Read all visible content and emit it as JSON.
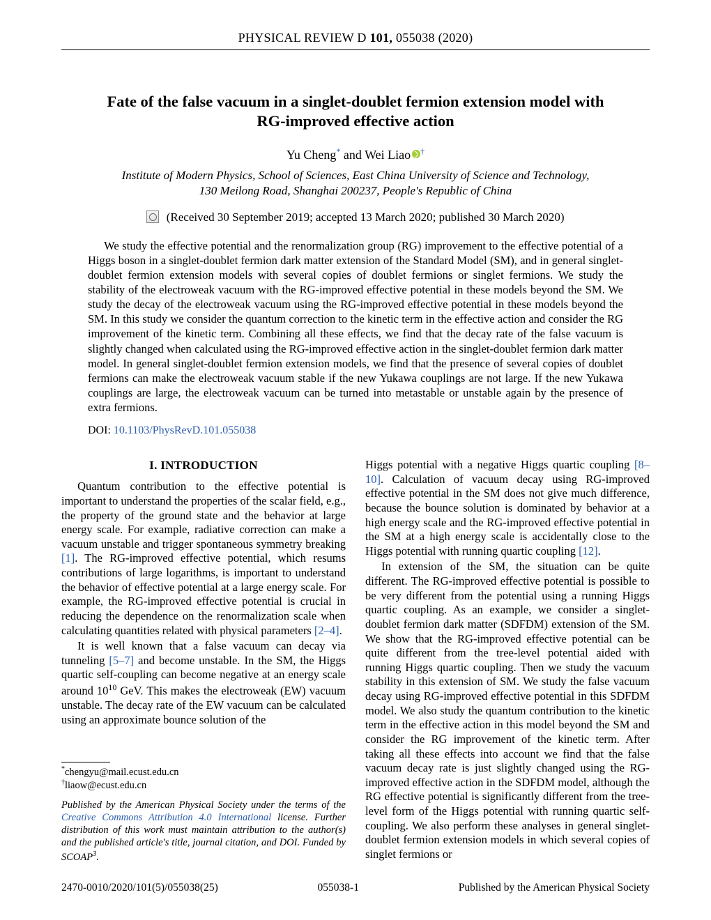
{
  "running_head": {
    "left": "PHYSICAL REVIEW D ",
    "volume": "101,",
    "right": " 055038 (2020)"
  },
  "title": "Fate of the false vacuum in a singlet-doublet fermion extension model with RG-improved effective action",
  "authors": {
    "a1_name": "Yu Cheng",
    "a1_sup": "*",
    "sep": " and ",
    "a2_name": "Wei Liao",
    "a2_sup": "†"
  },
  "affiliation_line1": "Institute of Modern Physics, School of Sciences, East China University of Science and Technology,",
  "affiliation_line2": "130 Meilong Road, Shanghai 200237, People's Republic of China",
  "dates": "(Received 30 September 2019; accepted 13 March 2020; published 30 March 2020)",
  "abstract": "We study the effective potential and the renormalization group (RG) improvement to the effective potential of a Higgs boson in a singlet-doublet fermion dark matter extension of the Standard Model (SM), and in general singlet-doublet fermion extension models with several copies of doublet fermions or singlet fermions. We study the stability of the electroweak vacuum with the RG-improved effective potential in these models beyond the SM. We study the decay of the electroweak vacuum using the RG-improved effective potential in these models beyond the SM. In this study we consider the quantum correction to the kinetic term in the effective action and consider the RG improvement of the kinetic term. Combining all these effects, we find that the decay rate of the false vacuum is slightly changed when calculated using the RG-improved effective action in the singlet-doublet fermion dark matter model. In general singlet-doublet fermion extension models, we find that the presence of several copies of doublet fermions can make the electroweak vacuum stable if the new Yukawa couplings are not large. If the new Yukawa couplings are large, the electroweak vacuum can be turned into metastable or unstable again by the presence of extra fermions.",
  "doi": {
    "label": "DOI: ",
    "link": "10.1103/PhysRevD.101.055038"
  },
  "section1_heading": "I. INTRODUCTION",
  "col1": {
    "p1a": "Quantum contribution to the effective potential is important to understand the properties of the scalar field, e.g., the property of the ground state and the behavior at large energy scale. For example, radiative correction can make a vacuum unstable and trigger spontaneous symmetry breaking ",
    "p1_ref1": "[1]",
    "p1b": ". The RG-improved effective potential, which resums contributions of large logarithms, is important to understand the behavior of effective potential at a large energy scale. For example, the RG-improved effective potential is crucial in reducing the dependence on the renormalization scale when calculating quantities related with physical parameters ",
    "p1_ref2": "[2–4]",
    "p1c": ".",
    "p2a": "It is well known that a false vacuum can decay via tunneling ",
    "p2_ref1": "[5–7]",
    "p2b": " and become unstable. In the SM, the Higgs quartic self-coupling can become negative at an energy scale around 10",
    "p2_exp": "10",
    "p2c": " GeV. This makes the electroweak (EW) vacuum unstable. The decay rate of the EW vacuum can be calculated using an approximate bounce solution of the"
  },
  "footnotes": {
    "f1_sup": "*",
    "f1": "chengyu@mail.ecust.edu.cn",
    "f2_sup": "†",
    "f2": "liaow@ecust.edu.cn"
  },
  "license": {
    "t1": "Published by the American Physical Society under the terms of the ",
    "cc": "Creative Commons Attribution 4.0 International",
    "t2": " license. Further distribution of this work must maintain attribution to the author(s) and the published article's title, journal citation, and DOI. Funded by SCOAP",
    "sup": "3",
    "t3": "."
  },
  "col2": {
    "p1a": "Higgs potential with a negative Higgs quartic coupling ",
    "p1_ref1": "[8–10]",
    "p1b": ". Calculation of vacuum decay using RG-improved effective potential in the SM does not give much difference, because the bounce solution is dominated by behavior at a high energy scale and the RG-improved effective potential in the SM at a high energy scale is accidentally close to the Higgs potential with running quartic coupling ",
    "p1_ref2": "[12]",
    "p1c": ".",
    "p2": "In extension of the SM, the situation can be quite different. The RG-improved effective potential is possible to be very different from the potential using a running Higgs quartic coupling. As an example, we consider a singlet-doublet fermion dark matter (SDFDM) extension of the SM. We show that the RG-improved effective potential can be quite different from the tree-level potential aided with running Higgs quartic coupling. Then we study the vacuum stability in this extension of SM. We study the false vacuum decay using RG-improved effective potential in this SDFDM model. We also study the quantum contribution to the kinetic term in the effective action in this model beyond the SM and consider the RG improvement of the kinetic term. After taking all these effects into account we find that the false vacuum decay rate is just slightly changed using the RG-improved effective action in the SDFDM model, although the RG effective potential is significantly different from the tree-level form of the Higgs potential with running quartic self-coupling. We also perform these analyses in general singlet-doublet fermion extension models in which several copies of singlet fermions or"
  },
  "footer": {
    "left_a": "2470-0010/2020/101(5)/055038(25)",
    "center": "055038-1",
    "right": "Published by the American Physical Society"
  }
}
